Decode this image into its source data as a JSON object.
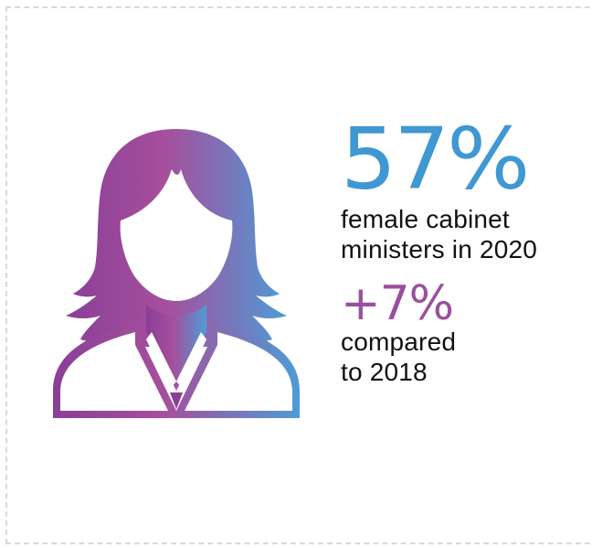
{
  "theme": {
    "primary_color": "#3f97d3",
    "secondary_color": "#9a4f9e",
    "gradient_start": "#8a3f97",
    "gradient_mid": "#a64f9c",
    "gradient_end": "#4e9bd6",
    "border_color": "#d0dbe6"
  },
  "icon": "woman-avatar-icon",
  "stat": {
    "primary_value": "57%",
    "primary_line1": "female cabinet",
    "primary_line2": "ministers in 2020",
    "secondary_value": "+7%",
    "secondary_line1": "compared",
    "secondary_line2": "to 2018"
  }
}
